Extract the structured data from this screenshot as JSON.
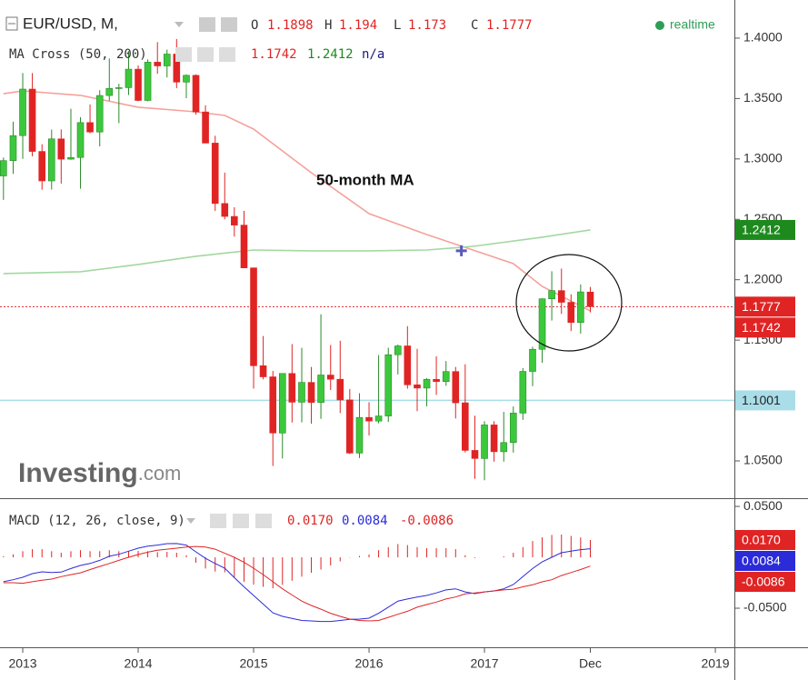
{
  "chart_data": [
    {
      "type": "candlestick",
      "title": "EUR/USD, M,",
      "ohlc_labels": [
        "O",
        "H",
        "L",
        "C"
      ],
      "status": "realtime",
      "indicator": "MA Cross (50, 200)",
      "indicator_state": "n/a",
      "annotation": "50-month MA",
      "watermark": [
        "Investing",
        ".com"
      ],
      "x": [
        2012.833,
        2012.917,
        2013.0,
        2013.083,
        2013.167,
        2013.25,
        2013.333,
        2013.417,
        2013.5,
        2013.583,
        2013.667,
        2013.75,
        2013.833,
        2013.917,
        2014.0,
        2014.083,
        2014.167,
        2014.25,
        2014.333,
        2014.417,
        2014.5,
        2014.583,
        2014.667,
        2014.75,
        2014.833,
        2014.917,
        2015.0,
        2015.083,
        2015.167,
        2015.25,
        2015.333,
        2015.417,
        2015.5,
        2015.583,
        2015.667,
        2015.75,
        2015.833,
        2015.917,
        2016.0,
        2016.083,
        2016.167,
        2016.25,
        2016.333,
        2016.417,
        2016.5,
        2016.583,
        2016.667,
        2016.75,
        2016.833,
        2016.917,
        2017.0,
        2017.083,
        2017.167,
        2017.25,
        2017.333,
        2017.417,
        2017.5,
        2017.583,
        2017.667,
        2017.75,
        2017.833,
        2017.917
      ],
      "open": [
        1.2859,
        1.2986,
        1.3193,
        1.3578,
        1.3062,
        1.2818,
        1.3166,
        1.2998,
        1.3012,
        1.3301,
        1.3223,
        1.3525,
        1.3584,
        1.359,
        1.3743,
        1.3484,
        1.3801,
        1.377,
        1.3868,
        1.3636,
        1.3692,
        1.3389,
        1.3131,
        1.2631,
        1.2524,
        1.2452,
        1.2098,
        1.1288,
        1.1196,
        1.0731,
        1.1224,
        1.0986,
        1.115,
        1.0984,
        1.1211,
        1.1176,
        1.1005,
        1.0565,
        1.086,
        1.083,
        1.0872,
        1.1379,
        1.1452,
        1.113,
        1.1103,
        1.1175,
        1.1157,
        1.124,
        1.0981,
        1.0587,
        1.052,
        1.0798,
        1.0576,
        1.0652,
        1.0896,
        1.1241,
        1.1424,
        1.1842,
        1.191,
        1.1813,
        1.1646,
        1.1898
      ],
      "high": [
        1.3011,
        1.3308,
        1.3711,
        1.3711,
        1.3122,
        1.3243,
        1.3244,
        1.3415,
        1.3346,
        1.3451,
        1.3569,
        1.3832,
        1.3622,
        1.3893,
        1.3774,
        1.3824,
        1.3967,
        1.3905,
        1.3993,
        1.37,
        1.37,
        1.3444,
        1.3192,
        1.2887,
        1.26,
        1.257,
        1.21,
        1.1534,
        1.1245,
        1.1214,
        1.1467,
        1.1436,
        1.1278,
        1.1714,
        1.146,
        1.1495,
        1.1095,
        1.106,
        1.0986,
        1.1376,
        1.1437,
        1.1463,
        1.1616,
        1.1428,
        1.1186,
        1.1366,
        1.1327,
        1.1278,
        1.13,
        1.0874,
        1.0829,
        1.0829,
        1.0906,
        1.0951,
        1.1268,
        1.1445,
        1.1846,
        1.207,
        1.2092,
        1.188,
        1.1961,
        1.194
      ],
      "low": [
        1.2661,
        1.2876,
        1.3,
        1.3021,
        1.2745,
        1.2746,
        1.2796,
        1.2993,
        1.2753,
        1.3213,
        1.3104,
        1.3481,
        1.3296,
        1.3529,
        1.3478,
        1.3477,
        1.3705,
        1.3674,
        1.3586,
        1.3503,
        1.3367,
        1.313,
        1.257,
        1.25,
        1.2357,
        1.2095,
        1.1098,
        1.1175,
        1.0458,
        1.052,
        1.0818,
        1.0819,
        1.0808,
        1.0848,
        1.1087,
        1.0896,
        1.0557,
        1.0524,
        1.0711,
        1.0811,
        1.0822,
        1.1216,
        1.1098,
        1.0912,
        1.0952,
        1.1046,
        1.1122,
        1.0851,
        1.0569,
        1.0352,
        1.034,
        1.0494,
        1.0494,
        1.0569,
        1.084,
        1.1119,
        1.1312,
        1.1662,
        1.1717,
        1.1575,
        1.1554,
        1.173
      ],
      "close": [
        1.2986,
        1.3193,
        1.3578,
        1.3062,
        1.2818,
        1.3166,
        1.2998,
        1.3012,
        1.3301,
        1.3223,
        1.3525,
        1.3584,
        1.359,
        1.3743,
        1.3484,
        1.3801,
        1.377,
        1.3868,
        1.3636,
        1.3692,
        1.3389,
        1.3131,
        1.2631,
        1.2524,
        1.2452,
        1.2098,
        1.1288,
        1.1196,
        1.0731,
        1.1224,
        1.0986,
        1.115,
        1.0984,
        1.1211,
        1.1176,
        1.1005,
        1.0565,
        1.086,
        1.083,
        1.0872,
        1.1379,
        1.1452,
        1.113,
        1.1103,
        1.1175,
        1.1157,
        1.124,
        1.0981,
        1.0587,
        1.052,
        1.0798,
        1.0576,
        1.0652,
        1.0896,
        1.1241,
        1.1424,
        1.1842,
        1.191,
        1.1813,
        1.1646,
        1.1899,
        1.1777
      ],
      "up_color": "#3cc83c",
      "down_color": "#e02424",
      "series": [
        {
          "name": "50-month MA",
          "color": "#f4a29a",
          "x": [
            2012.833,
            2013.0,
            2013.5,
            2014.0,
            2014.5,
            2014.75,
            2015.0,
            2015.5,
            2016.0,
            2016.5,
            2016.9,
            2017.25,
            2017.5,
            2017.917
          ],
          "values": [
            1.354,
            1.3563,
            1.3526,
            1.3428,
            1.339,
            1.336,
            1.3247,
            1.2886,
            1.2547,
            1.2374,
            1.2246,
            1.2133,
            1.1945,
            1.1742
          ]
        },
        {
          "color": "#a3d8a0",
          "x": [
            2012.833,
            2013.5,
            2014.0,
            2014.5,
            2015.0,
            2015.5,
            2016.0,
            2016.5,
            2016.9,
            2017.5,
            2017.917
          ],
          "values": [
            1.2051,
            1.2066,
            1.2126,
            1.2194,
            1.2246,
            1.2239,
            1.2239,
            1.2246,
            1.2276,
            1.2352,
            1.2412
          ]
        }
      ],
      "cross": {
        "x": 2016.8,
        "value": 1.2239,
        "color": "#5a5ab8"
      },
      "hline": {
        "value": 1.1001,
        "color": "#a9dde8"
      },
      "xlim": [
        2012.803,
        2019.165
      ],
      "xticks": [
        2013,
        2014,
        2015,
        2016,
        2017,
        {
          "value": 2017.917,
          "label": "Dec"
        },
        2019
      ],
      "ylim": [
        1.0199,
        1.4278
      ],
      "yticks": [
        {
          "value": 1.05,
          "label": "1.0500"
        },
        {
          "value": 1.1,
          "label": "1.1000"
        },
        {
          "value": 1.15,
          "label": "1.1500"
        },
        {
          "value": 1.2,
          "label": "1.2000"
        },
        {
          "value": 1.25,
          "label": "1.2500"
        },
        {
          "value": 1.3,
          "label": "1.3000"
        },
        {
          "value": 1.35,
          "label": "1.3500"
        },
        {
          "value": 1.4,
          "label": "1.4000"
        }
      ]
    },
    {
      "type": "macd",
      "title": "MACD (12, 26, close, 9)",
      "histogram": {
        "color": "#e02424",
        "values": [
          0.001,
          0.003,
          0.006,
          0.008,
          0.008,
          0.006,
          0.0045,
          0.006,
          0.007,
          0.006,
          0.006,
          0.007,
          0.006,
          0.006,
          0.0063,
          0.006,
          0.005,
          0.0054,
          0.0045,
          0.002,
          -0.0053,
          -0.011,
          -0.014,
          -0.0147,
          -0.02,
          -0.024,
          -0.0268,
          -0.029,
          -0.0305,
          -0.027,
          -0.023,
          -0.019,
          -0.0152,
          -0.012,
          -0.008,
          -0.004,
          -0.0003,
          0.0013,
          0.0027,
          0.007,
          0.01,
          0.013,
          0.012,
          0.01,
          0.0089,
          0.009,
          0.009,
          0.008,
          0.002,
          -0.0007,
          0.0,
          0.0,
          0.001,
          0.0045,
          0.01,
          0.016,
          0.0196,
          0.022,
          0.0224,
          0.021,
          0.0195,
          0.017
        ],
        "value_labels": [
          null,
          null,
          null,
          null,
          null,
          null,
          null,
          null,
          null,
          null,
          null,
          null,
          null,
          null,
          null,
          null,
          null,
          null,
          null,
          null,
          null,
          null,
          null,
          null,
          null,
          null,
          null,
          null,
          null,
          null,
          null,
          null,
          null,
          null,
          null,
          null,
          null,
          null,
          null,
          null,
          null,
          null,
          null,
          null,
          null,
          null,
          null,
          null,
          null,
          null,
          null,
          null,
          null,
          null,
          null,
          null,
          null,
          null,
          null,
          null,
          null,
          "0.0170"
        ]
      },
      "series": [
        {
          "color": "#2b2bd8",
          "values": [
            -0.024,
            -0.022,
            -0.0196,
            -0.016,
            -0.0143,
            -0.015,
            -0.0145,
            -0.011,
            -0.008,
            -0.006,
            -0.003,
            0.001,
            0.003,
            0.006,
            0.009,
            0.011,
            0.012,
            0.0134,
            0.0135,
            0.012,
            0.0054,
            -0.001,
            -0.006,
            -0.0107,
            -0.02,
            -0.029,
            -0.0375,
            -0.046,
            -0.0545,
            -0.058,
            -0.06,
            -0.062,
            -0.0625,
            -0.063,
            -0.063,
            -0.062,
            -0.061,
            -0.0607,
            -0.0598,
            -0.055,
            -0.049,
            -0.043,
            -0.041,
            -0.039,
            -0.0375,
            -0.035,
            -0.032,
            -0.031,
            -0.034,
            -0.0357,
            -0.034,
            -0.033,
            -0.031,
            -0.0268,
            -0.019,
            -0.011,
            -0.0045,
            0.0,
            0.0045,
            0.006,
            0.0075,
            0.0084
          ]
        },
        {
          "color": "#e02424",
          "values": [
            -0.025,
            -0.025,
            -0.0255,
            -0.024,
            -0.0225,
            -0.0214,
            -0.019,
            -0.017,
            -0.0152,
            -0.012,
            -0.009,
            -0.006,
            -0.003,
            0.0,
            0.0027,
            0.005,
            0.007,
            0.008,
            0.009,
            0.01,
            0.0107,
            0.01,
            0.008,
            0.004,
            0.0,
            -0.005,
            -0.0107,
            -0.017,
            -0.024,
            -0.031,
            -0.037,
            -0.043,
            -0.0473,
            -0.051,
            -0.055,
            -0.058,
            -0.0607,
            -0.062,
            -0.0625,
            -0.062,
            -0.059,
            -0.056,
            -0.053,
            -0.049,
            -0.0464,
            -0.044,
            -0.041,
            -0.039,
            -0.036,
            -0.035,
            -0.034,
            -0.033,
            -0.032,
            -0.0313,
            -0.029,
            -0.027,
            -0.0241,
            -0.022,
            -0.0179,
            -0.015,
            -0.012,
            -0.0086
          ]
        }
      ],
      "ylim": [
        -0.0866,
        0.0563
      ],
      "yticks": [
        {
          "value": 0.05,
          "label": "0.0500"
        },
        {
          "value": -0.05,
          "label": "-0.0500"
        }
      ]
    }
  ]
}
